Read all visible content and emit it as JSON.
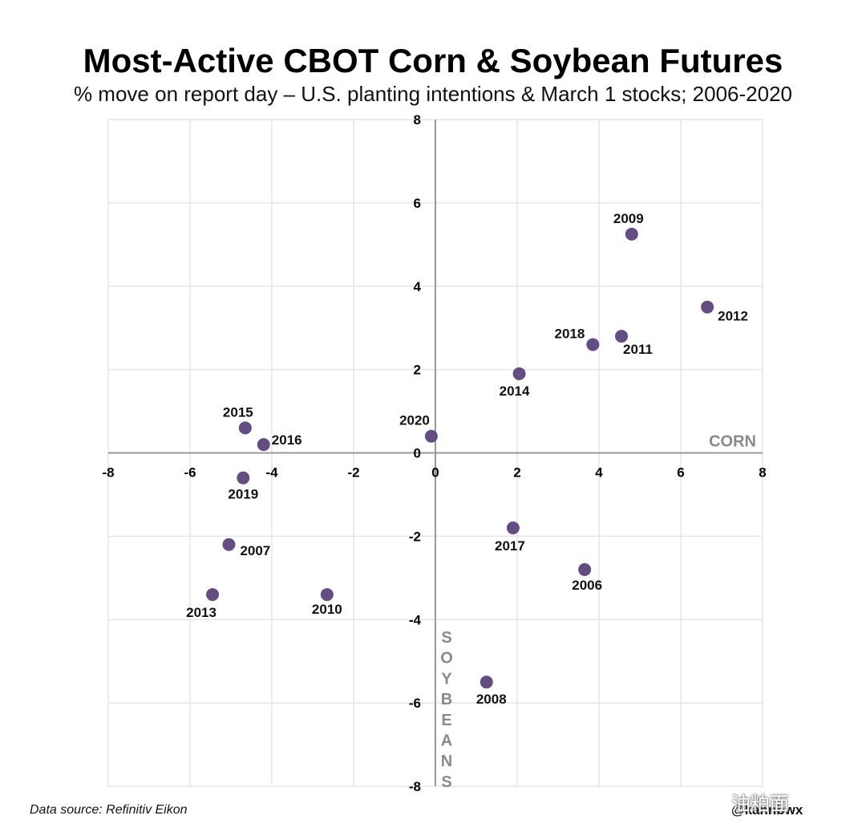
{
  "header": {
    "title": "Most-Active CBOT Corn & Soybean Futures",
    "subtitle": "% move on report day – U.S. planting intentions & March 1 stocks; 2006-2020"
  },
  "footer": {
    "source": "Data source: Refinitiv Eikon",
    "handle": "@kannbwx",
    "watermark": "油粕面"
  },
  "colors": {
    "point": "#634d83",
    "grid": "#e6e6e6",
    "axis": "#9a9a9a",
    "axis_name": "#8a8a8a"
  },
  "chart_data": {
    "type": "scatter",
    "title": "Most-Active CBOT Corn & Soybean Futures",
    "subtitle": "% move on report day – U.S. planting intentions & March 1 stocks; 2006-2020",
    "xlabel": "CORN",
    "ylabel": "SOYBEANS",
    "xlim": [
      -8,
      8
    ],
    "ylim": [
      -8,
      8
    ],
    "xticks": [
      -8,
      -6,
      -4,
      -2,
      0,
      2,
      4,
      6,
      8
    ],
    "yticks": [
      -8,
      -6,
      -4,
      -2,
      0,
      2,
      4,
      6,
      8
    ],
    "grid": true,
    "points": [
      {
        "label": "2006",
        "x": 3.65,
        "y": -2.8
      },
      {
        "label": "2007",
        "x": -5.05,
        "y": -2.2
      },
      {
        "label": "2008",
        "x": 1.25,
        "y": -5.5
      },
      {
        "label": "2009",
        "x": 4.8,
        "y": 5.25
      },
      {
        "label": "2010",
        "x": -2.65,
        "y": -3.4
      },
      {
        "label": "2011",
        "x": 4.55,
        "y": 2.8
      },
      {
        "label": "2012",
        "x": 6.65,
        "y": 3.5
      },
      {
        "label": "2013",
        "x": -5.45,
        "y": -3.4
      },
      {
        "label": "2014",
        "x": 2.05,
        "y": 1.9
      },
      {
        "label": "2015",
        "x": -4.65,
        "y": 0.6
      },
      {
        "label": "2016",
        "x": -4.2,
        "y": 0.2
      },
      {
        "label": "2017",
        "x": 1.9,
        "y": -1.8
      },
      {
        "label": "2018",
        "x": 3.85,
        "y": 2.6
      },
      {
        "label": "2019",
        "x": -4.7,
        "y": -0.6
      },
      {
        "label": "2020",
        "x": -0.1,
        "y": 0.4
      }
    ]
  }
}
